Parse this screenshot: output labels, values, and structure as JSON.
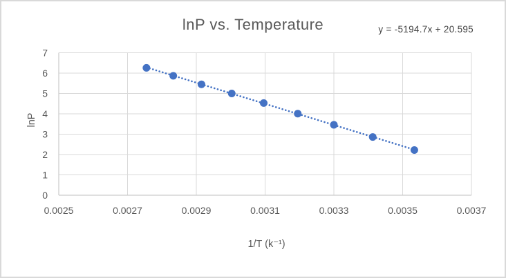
{
  "frame": {
    "background": "#ffffff",
    "border_color": "#d9d9d9"
  },
  "header": {
    "title": "lnP vs. Temperature",
    "equation": "y = -5194.7x + 20.595"
  },
  "axes": {
    "x_title": "1/T (k⁻¹)",
    "y_title": "lnP"
  },
  "chart_data": {
    "type": "scatter",
    "title": "lnP vs. Temperature",
    "xlabel": "1/T (k⁻¹)",
    "ylabel": "lnP",
    "xlim": [
      0.0025,
      0.0037
    ],
    "ylim": [
      0,
      7
    ],
    "x_ticks": [
      0.0025,
      0.0027,
      0.0029,
      0.0031,
      0.0033,
      0.0035,
      0.0037
    ],
    "x_tick_labels": [
      "0.0025",
      "0.0027",
      "0.0029",
      "0.0031",
      "0.0033",
      "0.0035",
      "0.0037"
    ],
    "y_ticks": [
      0,
      1,
      2,
      3,
      4,
      5,
      6,
      7
    ],
    "y_tick_labels": [
      "0",
      "1",
      "2",
      "3",
      "4",
      "5",
      "6",
      "7"
    ],
    "grid": true,
    "legend": "none",
    "series": [
      {
        "name": "lnP",
        "marker": "circle",
        "marker_color": "#4472c4",
        "x": [
          0.002755,
          0.002833,
          0.002915,
          0.003003,
          0.003096,
          0.003195,
          0.0033,
          0.003413,
          0.003534
        ],
        "y": [
          6.26,
          5.87,
          5.45,
          5.0,
          4.53,
          4.01,
          3.46,
          2.86,
          2.22
        ]
      }
    ],
    "trendline": {
      "equation": "y = -5194.7x + 20.595",
      "slope": -5194.7,
      "intercept": 20.595,
      "style": "dotted",
      "color": "#4472c4",
      "x_start": 0.002755,
      "x_end": 0.003534
    },
    "colors": {
      "gridline": "#d9d9d9",
      "axis_line": "#bfbfbf",
      "tick_label": "#595959",
      "title": "#595959",
      "equation_text": "#404040"
    }
  }
}
